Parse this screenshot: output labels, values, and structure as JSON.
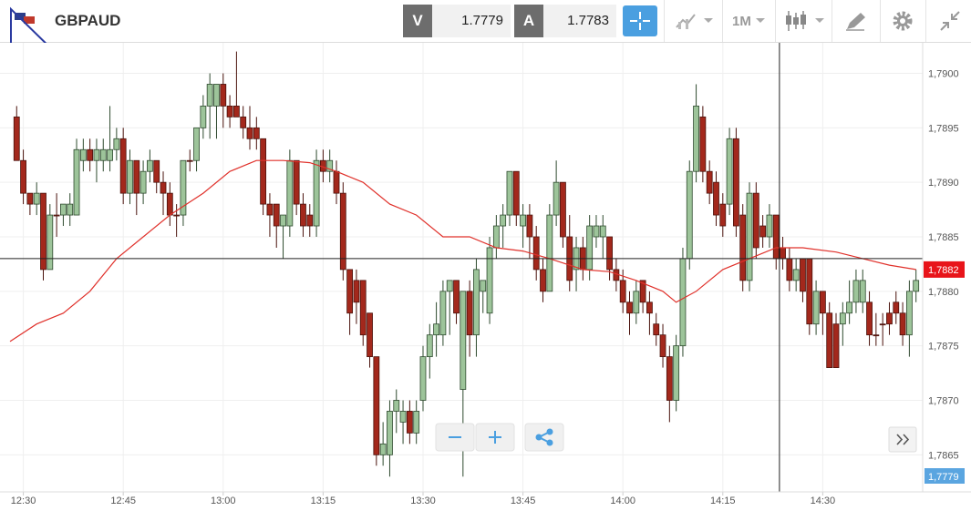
{
  "toolbar": {
    "symbol": "GBPAUD",
    "bid_label": "V",
    "bid": "1.7779",
    "ask_label": "A",
    "ask": "1.7783",
    "timeframe": "1M"
  },
  "chart_data": {
    "type": "candlestick",
    "up_color": "#9dc49a",
    "down_color": "#a3281c",
    "xlim": [
      746.5,
      885
    ],
    "ylim": [
      1.78616,
      1.79028
    ],
    "grid": true,
    "xticks": [
      {
        "value": 750,
        "label": "12:30"
      },
      {
        "value": 765,
        "label": "12:45"
      },
      {
        "value": 780,
        "label": "13:00"
      },
      {
        "value": 795,
        "label": "13:15"
      },
      {
        "value": 810,
        "label": "13:30"
      },
      {
        "value": 825,
        "label": "13:45"
      },
      {
        "value": 840,
        "label": "14:00"
      },
      {
        "value": 855,
        "label": "14:15"
      },
      {
        "value": 870,
        "label": "14:30"
      }
    ],
    "yticks": [
      {
        "value": 1.7865,
        "label": "1,7865"
      },
      {
        "value": 1.787,
        "label": "1,7870"
      },
      {
        "value": 1.7875,
        "label": "1,7875"
      },
      {
        "value": 1.788,
        "label": "1,7880"
      },
      {
        "value": 1.7885,
        "label": "1,7885"
      },
      {
        "value": 1.789,
        "label": "1,7890"
      },
      {
        "value": 1.7895,
        "label": "1,7895"
      },
      {
        "value": 1.79,
        "label": "1,7900"
      }
    ],
    "x": [
      749,
      750,
      751,
      752,
      753,
      754,
      755,
      756,
      757,
      758,
      759,
      760,
      761,
      762,
      763,
      764,
      765,
      766,
      767,
      768,
      769,
      770,
      771,
      772,
      773,
      774,
      775,
      776,
      777,
      778,
      779,
      780,
      781,
      782,
      783,
      784,
      785,
      786,
      787,
      788,
      789,
      790,
      791,
      792,
      793,
      794,
      795,
      796,
      797,
      798,
      799,
      800,
      801,
      802,
      803,
      804,
      805,
      806,
      807,
      808,
      809,
      810,
      811,
      812,
      813,
      814,
      815,
      816,
      817,
      818,
      819,
      820,
      821,
      822,
      823,
      824,
      825,
      826,
      827,
      828,
      829,
      830,
      831,
      832,
      833,
      834,
      835,
      836,
      837,
      838,
      839,
      840,
      841,
      842,
      843,
      844,
      845,
      846,
      847,
      848,
      849,
      850,
      851,
      852,
      853,
      854,
      855,
      856,
      857,
      858,
      859,
      860,
      861,
      862,
      863,
      864,
      865,
      866,
      867,
      868,
      869,
      870,
      871,
      872,
      873,
      874,
      875,
      876,
      877,
      878,
      879,
      880,
      881,
      882,
      883,
      884
    ],
    "candles": [
      [
        1.7896,
        1.7897,
        1.7892,
        1.7892
      ],
      [
        1.7892,
        1.7893,
        1.7888,
        1.7889
      ],
      [
        1.7889,
        1.7889,
        1.7887,
        1.7888
      ],
      [
        1.7888,
        1.789,
        1.7887,
        1.7889
      ],
      [
        1.7889,
        1.7889,
        1.7881,
        1.7882
      ],
      [
        1.7882,
        1.7888,
        1.7882,
        1.7887
      ],
      [
        1.7887,
        1.7889,
        1.7885,
        1.7887
      ],
      [
        1.7887,
        1.7888,
        1.7886,
        1.7888
      ],
      [
        1.7887,
        1.7889,
        1.7886,
        1.7888
      ],
      [
        1.7887,
        1.7894,
        1.7887,
        1.7893
      ],
      [
        1.7892,
        1.7894,
        1.7891,
        1.7893
      ],
      [
        1.7893,
        1.7894,
        1.7891,
        1.7892
      ],
      [
        1.7892,
        1.7894,
        1.789,
        1.7893
      ],
      [
        1.7892,
        1.7894,
        1.7891,
        1.7893
      ],
      [
        1.7892,
        1.7897,
        1.7891,
        1.7893
      ],
      [
        1.7893,
        1.7895,
        1.7892,
        1.7894
      ],
      [
        1.7894,
        1.7895,
        1.7888,
        1.7889
      ],
      [
        1.7889,
        1.7893,
        1.7888,
        1.7892
      ],
      [
        1.7892,
        1.7892,
        1.7887,
        1.7889
      ],
      [
        1.7889,
        1.7892,
        1.7888,
        1.7891
      ],
      [
        1.7891,
        1.7893,
        1.789,
        1.7892
      ],
      [
        1.7892,
        1.7892,
        1.7889,
        1.789
      ],
      [
        1.789,
        1.7891,
        1.7887,
        1.7889
      ],
      [
        1.7889,
        1.789,
        1.7886,
        1.7887
      ],
      [
        1.7887,
        1.7888,
        1.7885,
        1.7887
      ],
      [
        1.7887,
        1.7892,
        1.7886,
        1.7892
      ],
      [
        1.7892,
        1.7893,
        1.7891,
        1.7892
      ],
      [
        1.7892,
        1.7895,
        1.7891,
        1.7895
      ],
      [
        1.7895,
        1.7898,
        1.7894,
        1.7897
      ],
      [
        1.7897,
        1.79,
        1.7894,
        1.7899
      ],
      [
        1.7897,
        1.7899,
        1.7894,
        1.7899
      ],
      [
        1.7899,
        1.79,
        1.7895,
        1.7897
      ],
      [
        1.7897,
        1.7898,
        1.7895,
        1.7896
      ],
      [
        1.7897,
        1.7902,
        1.7896,
        1.7896
      ],
      [
        1.7896,
        1.7897,
        1.7894,
        1.7895
      ],
      [
        1.7895,
        1.7897,
        1.7893,
        1.7894
      ],
      [
        1.7895,
        1.7896,
        1.7893,
        1.7894
      ],
      [
        1.7894,
        1.7894,
        1.7887,
        1.7888
      ],
      [
        1.7888,
        1.7889,
        1.7885,
        1.7887
      ],
      [
        1.7888,
        1.7888,
        1.7884,
        1.7886
      ],
      [
        1.7886,
        1.7887,
        1.7883,
        1.7887
      ],
      [
        1.7886,
        1.7893,
        1.7885,
        1.7892
      ],
      [
        1.7892,
        1.7892,
        1.7887,
        1.7888
      ],
      [
        1.7888,
        1.7889,
        1.7885,
        1.7886
      ],
      [
        1.7887,
        1.7888,
        1.7885,
        1.7886
      ],
      [
        1.7886,
        1.7893,
        1.7885,
        1.7892
      ],
      [
        1.7892,
        1.7893,
        1.789,
        1.7891
      ],
      [
        1.7891,
        1.7893,
        1.789,
        1.7892
      ],
      [
        1.7891,
        1.7892,
        1.7888,
        1.7889
      ],
      [
        1.7889,
        1.789,
        1.7881,
        1.7882
      ],
      [
        1.7882,
        1.7882,
        1.7876,
        1.7878
      ],
      [
        1.7881,
        1.7882,
        1.7877,
        1.7879
      ],
      [
        1.7881,
        1.7881,
        1.7875,
        1.7876
      ],
      [
        1.7878,
        1.7878,
        1.7873,
        1.7874
      ],
      [
        1.7874,
        1.7874,
        1.7864,
        1.7865
      ],
      [
        1.7865,
        1.7868,
        1.7864,
        1.7866
      ],
      [
        1.7865,
        1.787,
        1.7863,
        1.7869
      ],
      [
        1.7869,
        1.7871,
        1.7867,
        1.787
      ],
      [
        1.7868,
        1.787,
        1.7866,
        1.7869
      ],
      [
        1.7869,
        1.787,
        1.7866,
        1.7867
      ],
      [
        1.7867,
        1.787,
        1.7866,
        1.7869
      ],
      [
        1.787,
        1.7875,
        1.7869,
        1.7874
      ],
      [
        1.7874,
        1.7877,
        1.7872,
        1.7876
      ],
      [
        1.7876,
        1.7879,
        1.7874,
        1.7877
      ],
      [
        1.7876,
        1.7881,
        1.7875,
        1.788
      ],
      [
        1.788,
        1.7881,
        1.7876,
        1.7881
      ],
      [
        1.7881,
        1.7881,
        1.7877,
        1.7878
      ],
      [
        1.7871,
        1.788,
        1.7863,
        1.788
      ],
      [
        1.788,
        1.7881,
        1.7874,
        1.7876
      ],
      [
        1.7876,
        1.7883,
        1.7874,
        1.7882
      ],
      [
        1.788,
        1.7881,
        1.7878,
        1.7881
      ],
      [
        1.7878,
        1.7885,
        1.7877,
        1.7884
      ],
      [
        1.7884,
        1.7887,
        1.7883,
        1.7886
      ],
      [
        1.7886,
        1.7888,
        1.7884,
        1.7887
      ],
      [
        1.7887,
        1.7891,
        1.7886,
        1.7891
      ],
      [
        1.7891,
        1.7891,
        1.7886,
        1.7887
      ],
      [
        1.7886,
        1.7888,
        1.7884,
        1.7887
      ],
      [
        1.7887,
        1.7888,
        1.7883,
        1.7885
      ],
      [
        1.7885,
        1.7886,
        1.7881,
        1.7882
      ],
      [
        1.7882,
        1.7883,
        1.7879,
        1.788
      ],
      [
        1.788,
        1.7888,
        1.788,
        1.7887
      ],
      [
        1.7887,
        1.7892,
        1.7886,
        1.789
      ],
      [
        1.789,
        1.789,
        1.7884,
        1.7885
      ],
      [
        1.7885,
        1.7887,
        1.788,
        1.7881
      ],
      [
        1.7882,
        1.7885,
        1.788,
        1.7884
      ],
      [
        1.7884,
        1.7885,
        1.7881,
        1.7882
      ],
      [
        1.7882,
        1.7887,
        1.7881,
        1.7886
      ],
      [
        1.7885,
        1.7887,
        1.7884,
        1.7886
      ],
      [
        1.7885,
        1.7887,
        1.7883,
        1.7886
      ],
      [
        1.7885,
        1.7885,
        1.7881,
        1.7882
      ],
      [
        1.7882,
        1.7883,
        1.788,
        1.7881
      ],
      [
        1.7881,
        1.7882,
        1.7878,
        1.7879
      ],
      [
        1.7879,
        1.788,
        1.7876,
        1.7878
      ],
      [
        1.7878,
        1.7881,
        1.7877,
        1.788
      ],
      [
        1.7881,
        1.7881,
        1.7878,
        1.7879
      ],
      [
        1.7879,
        1.788,
        1.7876,
        1.7878
      ],
      [
        1.7877,
        1.7878,
        1.7875,
        1.7876
      ],
      [
        1.7876,
        1.7877,
        1.7873,
        1.7874
      ],
      [
        1.7874,
        1.7875,
        1.7868,
        1.787
      ],
      [
        1.787,
        1.7876,
        1.7869,
        1.7875
      ],
      [
        1.7875,
        1.7884,
        1.7874,
        1.7883
      ],
      [
        1.7883,
        1.7892,
        1.7882,
        1.7891
      ],
      [
        1.7891,
        1.7899,
        1.789,
        1.7897
      ],
      [
        1.7896,
        1.7897,
        1.789,
        1.7891
      ],
      [
        1.7891,
        1.7892,
        1.7888,
        1.7889
      ],
      [
        1.789,
        1.7891,
        1.7886,
        1.7887
      ],
      [
        1.7888,
        1.7889,
        1.7885,
        1.7886
      ],
      [
        1.7888,
        1.7895,
        1.7887,
        1.7894
      ],
      [
        1.7894,
        1.7895,
        1.7885,
        1.7886
      ],
      [
        1.7887,
        1.7888,
        1.788,
        1.7881
      ],
      [
        1.7881,
        1.789,
        1.788,
        1.7889
      ],
      [
        1.7889,
        1.789,
        1.7883,
        1.7884
      ],
      [
        1.7886,
        1.7887,
        1.7884,
        1.7885
      ],
      [
        1.7885,
        1.7888,
        1.7884,
        1.7887
      ],
      [
        1.7887,
        1.7887,
        1.7882,
        1.7883
      ],
      [
        1.7884,
        1.7885,
        1.7882,
        1.7883
      ],
      [
        1.7883,
        1.7884,
        1.788,
        1.7881
      ],
      [
        1.7881,
        1.7883,
        1.788,
        1.7882
      ],
      [
        1.7883,
        1.7883,
        1.7879,
        1.788
      ],
      [
        1.7883,
        1.7883,
        1.7876,
        1.7877
      ],
      [
        1.7877,
        1.7881,
        1.7876,
        1.788
      ],
      [
        1.788,
        1.788,
        1.7876,
        1.7878
      ],
      [
        1.7878,
        1.7879,
        1.7873,
        1.7873
      ],
      [
        1.7877,
        1.7878,
        1.7873,
        1.7873
      ],
      [
        1.7877,
        1.7879,
        1.7875,
        1.7878
      ],
      [
        1.7878,
        1.7881,
        1.7877,
        1.7879
      ],
      [
        1.7879,
        1.7882,
        1.7878,
        1.7881
      ],
      [
        1.7879,
        1.7882,
        1.7878,
        1.7881
      ],
      [
        1.7879,
        1.788,
        1.7875,
        1.7876
      ],
      [
        1.7876,
        1.7878,
        1.7875,
        1.7876
      ],
      [
        1.7877,
        1.7878,
        1.7875,
        1.7877
      ],
      [
        1.7878,
        1.7879,
        1.7876,
        1.7877
      ],
      [
        1.7879,
        1.788,
        1.7877,
        1.7878
      ],
      [
        1.7878,
        1.7879,
        1.7875,
        1.7876
      ],
      [
        1.7876,
        1.7881,
        1.7874,
        1.788
      ],
      [
        1.788,
        1.7882,
        1.7879,
        1.7881
      ]
    ],
    "moving_average": {
      "color": "#e0312b",
      "x": [
        748,
        752,
        756,
        760,
        764,
        768,
        772,
        777,
        781,
        785,
        789,
        793,
        797,
        801,
        805,
        809,
        813,
        817,
        821,
        825,
        829,
        834,
        838,
        842,
        846,
        848,
        851,
        855,
        859,
        863,
        867,
        872,
        876,
        880,
        884
      ],
      "values": [
        1.78754,
        1.7877,
        1.7878,
        1.788,
        1.7883,
        1.7885,
        1.7887,
        1.7889,
        1.7891,
        1.7892,
        1.7892,
        1.78918,
        1.7891,
        1.789,
        1.7888,
        1.7887,
        1.7885,
        1.7885,
        1.7884,
        1.78837,
        1.7883,
        1.7882,
        1.78818,
        1.7881,
        1.788,
        1.7879,
        1.788,
        1.7882,
        1.7883,
        1.7884,
        1.7884,
        1.78836,
        1.7883,
        1.78824,
        1.7882
      ]
    },
    "crosshair": {
      "x": 863.5,
      "y": 1.7883
    },
    "last_price": {
      "value": 1.7882,
      "label": "1,7882",
      "color": "#e8141a"
    },
    "bid_marker": "1,7779"
  }
}
